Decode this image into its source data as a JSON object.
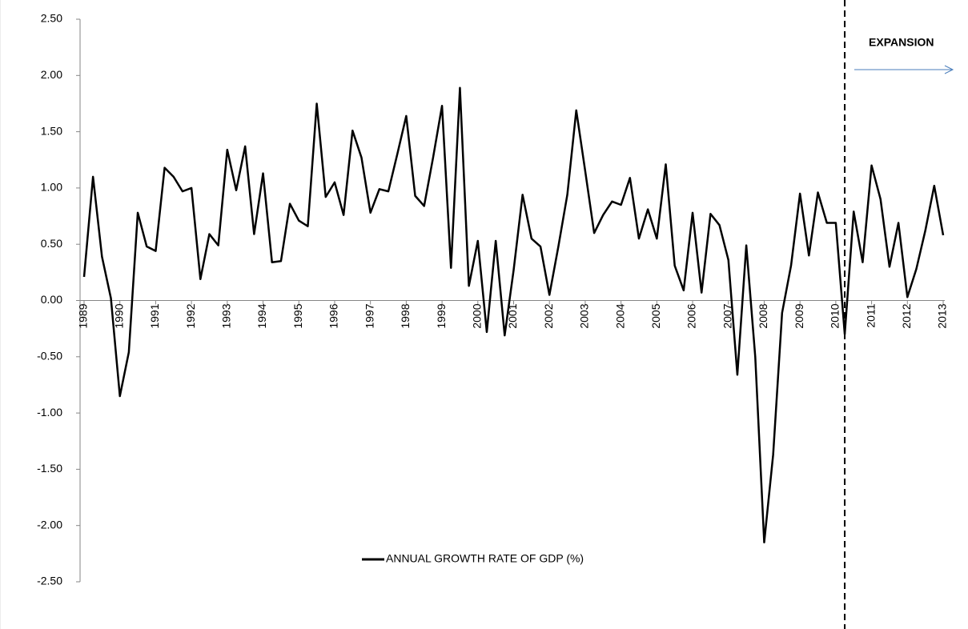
{
  "chart_data": {
    "type": "line",
    "x": [
      1989,
      1989.25,
      1989.5,
      1989.75,
      1990,
      1990.25,
      1990.5,
      1990.75,
      1991,
      1991.25,
      1991.5,
      1991.75,
      1992,
      1992.25,
      1992.5,
      1992.75,
      1993,
      1993.25,
      1993.5,
      1993.75,
      1994,
      1994.25,
      1994.5,
      1994.75,
      1995,
      1995.25,
      1995.5,
      1995.75,
      1996,
      1996.25,
      1996.5,
      1996.75,
      1997,
      1997.25,
      1997.5,
      1997.75,
      1998,
      1998.25,
      1998.5,
      1998.75,
      1999,
      1999.25,
      1999.5,
      1999.75,
      2000,
      2000.25,
      2000.5,
      2000.75,
      2001,
      2001.25,
      2001.5,
      2001.75,
      2002,
      2002.25,
      2002.5,
      2002.75,
      2003,
      2003.25,
      2003.5,
      2003.75,
      2004,
      2004.25,
      2004.5,
      2004.75,
      2005,
      2005.25,
      2005.5,
      2005.75,
      2006,
      2006.25,
      2006.5,
      2006.75,
      2007,
      2007.25,
      2007.5,
      2007.75,
      2008,
      2008.25,
      2008.5,
      2008.75,
      2009,
      2009.25,
      2009.5,
      2009.75,
      2010,
      2010.25,
      2010.5,
      2010.75,
      2011,
      2011.25,
      2011.5,
      2011.75,
      2012,
      2012.25,
      2012.5,
      2012.75,
      2013
    ],
    "series": [
      {
        "name": "ANNUAL GROWTH RATE OF GDP (%)",
        "color": "#000000",
        "values": [
          0.21,
          1.1,
          0.39,
          0.02,
          -0.85,
          -0.46,
          0.78,
          0.48,
          0.44,
          1.18,
          1.1,
          0.97,
          1.0,
          0.19,
          0.59,
          0.49,
          1.34,
          0.98,
          1.37,
          0.59,
          1.13,
          0.34,
          0.35,
          0.86,
          0.71,
          0.66,
          1.75,
          0.92,
          1.05,
          0.76,
          1.51,
          1.27,
          0.78,
          0.99,
          0.97,
          1.3,
          1.64,
          0.93,
          0.84,
          1.27,
          1.73,
          0.29,
          1.89,
          0.13,
          0.53,
          -0.28,
          0.53,
          -0.31,
          0.27,
          0.94,
          0.55,
          0.48,
          0.05,
          0.48,
          0.94,
          1.69,
          1.15,
          0.6,
          0.76,
          0.88,
          0.85,
          1.09,
          0.55,
          0.81,
          0.55,
          1.21,
          0.31,
          0.09,
          0.78,
          0.07,
          0.77,
          0.67,
          0.36,
          -0.66,
          0.49,
          -0.5,
          -2.15,
          -1.37,
          -0.11,
          0.31,
          0.95,
          0.4,
          0.96,
          0.69,
          0.69,
          -0.3,
          0.79,
          0.34,
          1.2,
          0.9,
          0.3,
          0.69,
          0.03,
          0.28,
          0.62,
          1.02,
          0.58
        ]
      }
    ],
    "xlim": [
      1989,
      2013
    ],
    "xticks": [
      1989,
      1990,
      1991,
      1992,
      1993,
      1994,
      1995,
      1996,
      1997,
      1998,
      1999,
      2000,
      2001,
      2002,
      2003,
      2004,
      2005,
      2006,
      2007,
      2008,
      2009,
      2010,
      2011,
      2012,
      2013
    ],
    "ylim": [
      -2.5,
      2.5
    ],
    "yticks": [
      {
        "value": -2.5,
        "label": "-2.50"
      },
      {
        "value": -2,
        "label": "-2.00"
      },
      {
        "value": -1.5,
        "label": "-1.50"
      },
      {
        "value": -1,
        "label": "-1.00"
      },
      {
        "value": -0.5,
        "label": "-0.50"
      },
      {
        "value": 0,
        "label": "0.00"
      },
      {
        "value": 0.5,
        "label": "0.50"
      },
      {
        "value": 1,
        "label": "1.00"
      },
      {
        "value": 1.5,
        "label": "1.50"
      },
      {
        "value": 2,
        "label": "2.00"
      },
      {
        "value": 2.5,
        "label": "2.50"
      }
    ],
    "grid": false,
    "legend": "bottom",
    "annotations": [
      {
        "text": "EXPANSION",
        "x": 2010.25
      }
    ]
  }
}
